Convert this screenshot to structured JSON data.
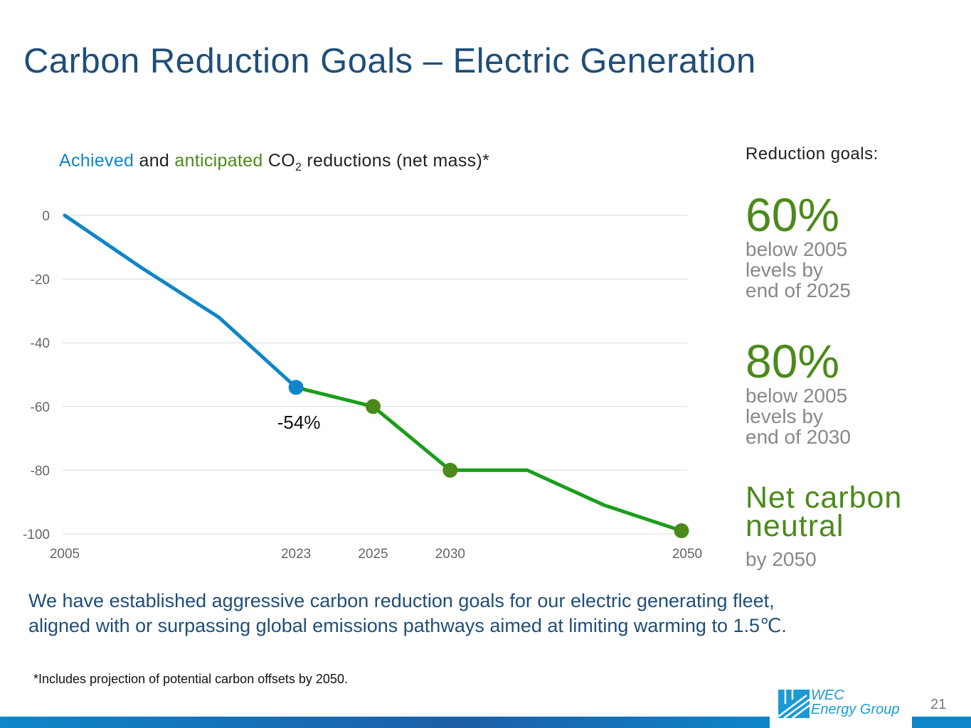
{
  "title": "Carbon Reduction Goals – Electric Generation",
  "chart_title": {
    "achieved": "Achieved",
    "and": " and ",
    "anticipated": "anticipated",
    "co": " CO",
    "sub": "2",
    "rest": " reductions (net mass)*"
  },
  "chart_data": {
    "type": "line",
    "categories": [
      "2005",
      "",
      "",
      "2023",
      "2025",
      "2030",
      "",
      "",
      "2050"
    ],
    "series": [
      {
        "name": "Achieved",
        "color": "#0e86c8",
        "values": [
          0,
          -16.5,
          -32,
          -54,
          null,
          null,
          null,
          null,
          null
        ]
      },
      {
        "name": "anticipated",
        "color": "#1a9e1a",
        "values": [
          null,
          null,
          null,
          -54,
          -60,
          -80,
          -80,
          -91,
          -99
        ]
      }
    ],
    "markers": [
      {
        "category": "2023",
        "value": -54,
        "color": "#0e86c8"
      },
      {
        "category": "2025",
        "value": -60,
        "color": "#4b8a1a"
      },
      {
        "category": "2030",
        "value": -80,
        "color": "#4b8a1a"
      },
      {
        "category": "2050",
        "value": -99,
        "color": "#4b8a1a"
      }
    ],
    "data_labels": [
      {
        "category": "2023",
        "text": "-54%"
      }
    ],
    "y_ticks": [
      "0",
      "-20",
      "-40",
      "-60",
      "-80",
      "-100"
    ],
    "ylim": [
      -100,
      0
    ],
    "grid": true
  },
  "goals": {
    "heading": "Reduction goals:",
    "g1_big": "60%",
    "g1_l1": "below 2005",
    "g1_l2": "levels by",
    "g1_l3": "end of 2025",
    "g2_big": "80%",
    "g2_l1": "below 2005",
    "g2_l2": "levels by",
    "g2_l3": "end of 2030",
    "g3_l1": "Net carbon",
    "g3_l2": "neutral",
    "g3_sub": "by 2050"
  },
  "summary_l1": "We have established aggressive carbon reduction goals for our electric generating fleet,",
  "summary_l2": "aligned with or surpassing global emissions pathways aimed at limiting warming to 1.5℃.",
  "footnote": "*Includes projection of potential carbon offsets by 2050.",
  "logo": {
    "line1": "WEC",
    "line2": "Energy Group"
  },
  "page_number": "21"
}
